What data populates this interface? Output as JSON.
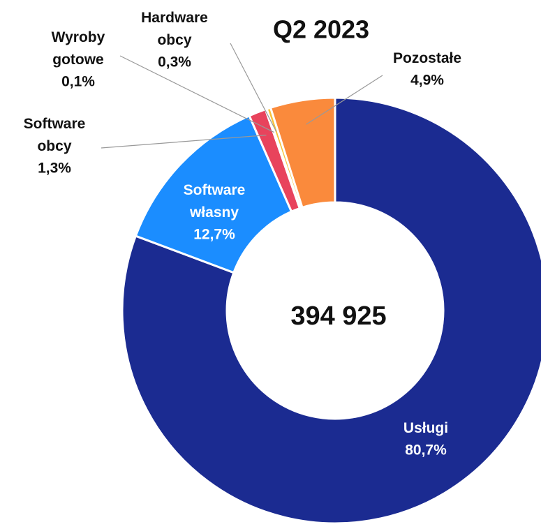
{
  "chart_data": {
    "type": "donut",
    "title": "Q2 2023",
    "center_label": "394 925",
    "categories": [
      "Usługi",
      "Software własny",
      "Software obcy",
      "Wyroby gotowe",
      "Hardware obcy",
      "Pozostałe"
    ],
    "values": [
      80.7,
      12.7,
      1.3,
      0.1,
      0.3,
      4.9
    ],
    "value_labels": [
      "80,7%",
      "12,7%",
      "1,3%",
      "0,1%",
      "0,3%",
      "4,9%"
    ],
    "colors": [
      "#1b2b91",
      "#1b8dff",
      "#e8435c",
      "#8a6bb0",
      "#f7c23a",
      "#fa8a3c"
    ]
  }
}
